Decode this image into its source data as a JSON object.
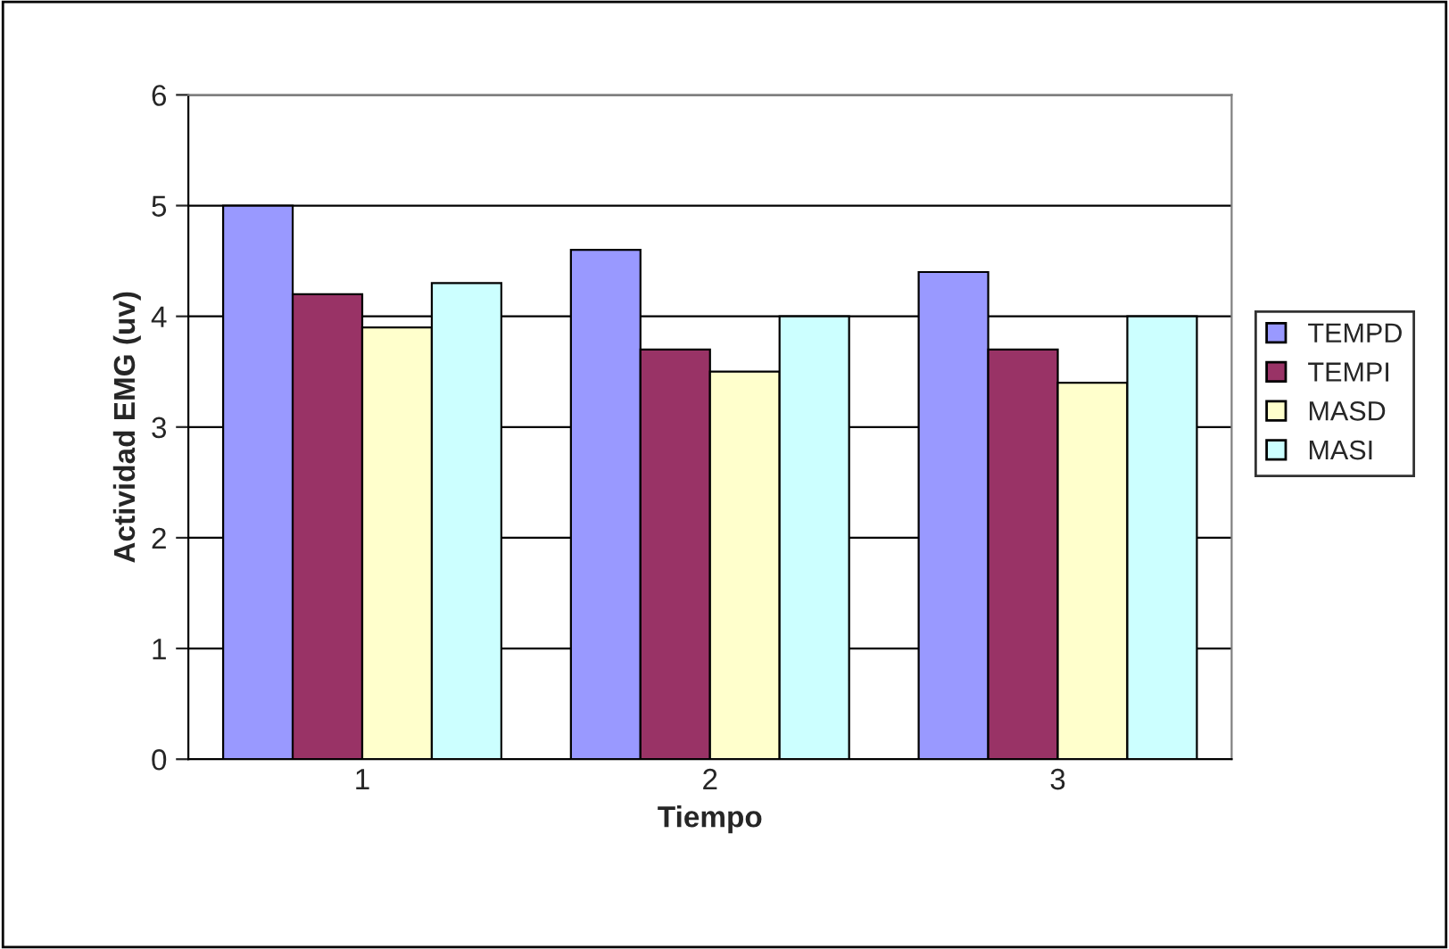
{
  "chart_data": {
    "type": "bar",
    "xlabel": "Tiempo",
    "ylabel": "Actividad EMG (uv)",
    "categories": [
      "1",
      "2",
      "3"
    ],
    "series": [
      {
        "name": "TEMPD",
        "color": "#9999ff",
        "values": [
          5.0,
          4.6,
          4.4
        ]
      },
      {
        "name": "TEMPI",
        "color": "#993366",
        "values": [
          4.2,
          3.7,
          3.7
        ]
      },
      {
        "name": "MASD",
        "color": "#ffffcc",
        "values": [
          3.9,
          3.5,
          3.4
        ]
      },
      {
        "name": "MASI",
        "color": "#ccffff",
        "values": [
          4.3,
          4.0,
          4.0
        ]
      }
    ],
    "ylim": [
      0,
      6
    ],
    "yticks": [
      0,
      1,
      2,
      3,
      4,
      5,
      6
    ],
    "grid": "y",
    "legend": "right"
  }
}
